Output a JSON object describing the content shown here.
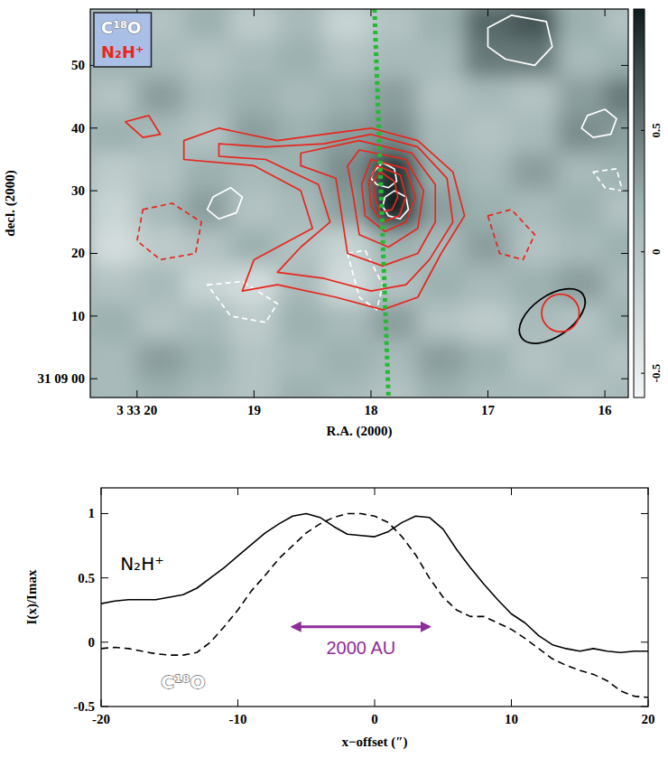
{
  "chart_data": [
    {
      "type": "contour",
      "x_label": "R.A. (2000)",
      "y_label": "decl. (2000)",
      "xlim": [
        20.4,
        15.8
      ],
      "ylim": [
        -3,
        59
      ],
      "xticks": [
        {
          "value": 20,
          "label": "3 33 20"
        },
        19,
        18,
        17,
        16
      ],
      "yticks": [
        {
          "value": 0,
          "label": "31 09 00"
        },
        10,
        20,
        30,
        40,
        50
      ],
      "legend": "top-left",
      "image": {
        "x": [
          20.2,
          19.8,
          19.4,
          19.0,
          18.6,
          18.2,
          17.8,
          17.4,
          17.0,
          16.6,
          16.2,
          15.8
        ],
        "y": [
          57,
          51,
          45,
          39,
          33,
          27,
          21,
          15,
          9,
          3,
          -3
        ],
        "z": [
          [
            0.1,
            0.0,
            0.2,
            -0.1,
            0.1,
            -0.2,
            0.0,
            0.2,
            0.6,
            0.7,
            0.2,
            0.0
          ],
          [
            0.2,
            0.1,
            0.0,
            0.1,
            0.2,
            0.0,
            0.1,
            0.1,
            0.5,
            0.5,
            0.1,
            0.2
          ],
          [
            0.0,
            0.3,
            0.1,
            0.2,
            0.1,
            0.2,
            0.3,
            0.0,
            0.1,
            0.0,
            0.3,
            0.5
          ],
          [
            0.2,
            0.1,
            0.0,
            0.3,
            0.2,
            0.3,
            0.4,
            0.1,
            0.0,
            0.1,
            0.4,
            0.3
          ],
          [
            -0.1,
            0.0,
            0.2,
            0.1,
            0.2,
            0.4,
            0.9,
            0.2,
            0.1,
            0.3,
            0.1,
            0.2
          ],
          [
            -0.2,
            0.1,
            0.3,
            0.0,
            0.1,
            0.3,
            1.0,
            0.3,
            0.2,
            0.1,
            0.2,
            0.0
          ],
          [
            -0.3,
            -0.1,
            0.0,
            0.2,
            0.0,
            -0.2,
            0.2,
            0.1,
            0.3,
            0.0,
            0.1,
            0.2
          ],
          [
            0.0,
            0.1,
            -0.2,
            -0.3,
            0.1,
            -0.3,
            0.0,
            0.2,
            0.1,
            0.2,
            0.3,
            0.1
          ],
          [
            0.2,
            0.0,
            0.1,
            -0.1,
            0.2,
            0.1,
            0.3,
            0.0,
            -0.1,
            0.1,
            0.0,
            0.2
          ],
          [
            0.1,
            0.3,
            0.2,
            0.0,
            0.1,
            0.2,
            0.1,
            0.3,
            0.2,
            0.0,
            0.1,
            0.0
          ],
          [
            0.1,
            0.2,
            0.1,
            0.0,
            0.2,
            0.1,
            0.0,
            0.2,
            0.1,
            0.1,
            0.0,
            0.1
          ]
        ],
        "zlim": [
          -0.6,
          1.0
        ],
        "zticks": [
          -0.5,
          0,
          0.5
        ]
      },
      "series": [
        {
          "name": "C¹⁸O",
          "color": "#ffffff",
          "contours": [
            {
              "line_style": "solid",
              "x": [
                17.98,
                17.9,
                17.8,
                17.78,
                17.85,
                17.95,
                18.0
              ],
              "y": [
                33,
                34.5,
                33.5,
                31.5,
                30.5,
                31,
                32
              ]
            },
            {
              "line_style": "solid",
              "x": [
                17.88,
                17.8,
                17.7,
                17.68,
                17.75,
                17.85,
                17.9
              ],
              "y": [
                29,
                30,
                29,
                27,
                25.5,
                26,
                27.5
              ]
            },
            {
              "line_style": "solid",
              "x": [
                17.0,
                16.8,
                16.5,
                16.45,
                16.6,
                16.85,
                17.0
              ],
              "y": [
                56,
                58,
                57,
                53,
                50,
                51,
                53
              ]
            },
            {
              "line_style": "solid",
              "x": [
                16.15,
                16.0,
                15.9,
                15.95,
                16.1,
                16.2
              ],
              "y": [
                42,
                43,
                41.5,
                39,
                38.5,
                40
              ]
            },
            {
              "line_style": "solid",
              "x": [
                19.35,
                19.2,
                19.1,
                19.15,
                19.3,
                19.4
              ],
              "y": [
                29,
                30.5,
                29,
                26.5,
                25.5,
                27
              ]
            },
            {
              "line_style": "dashed",
              "x": [
                18.2,
                18.05,
                17.9,
                17.95,
                18.1
              ],
              "y": [
                20,
                20.5,
                15,
                11,
                13
              ]
            },
            {
              "line_style": "dashed",
              "x": [
                19.4,
                19.1,
                18.8,
                18.9,
                19.2
              ],
              "y": [
                15,
                15.5,
                12,
                9,
                10
              ]
            },
            {
              "line_style": "dashed",
              "x": [
                16.1,
                15.9,
                15.85,
                16.0
              ],
              "y": [
                33,
                33.5,
                30,
                30.5
              ]
            }
          ]
        },
        {
          "name": "N₂H⁺",
          "color": "#e8261c",
          "contours": [
            {
              "line_style": "solid",
              "x": [
                19.6,
                19.3,
                18.8,
                18.4,
                18.0,
                17.6,
                17.3,
                17.2,
                17.4,
                17.6,
                17.9,
                18.3,
                18.8,
                19.1,
                19.0,
                18.5,
                18.6,
                19.0,
                19.6
              ],
              "y": [
                38,
                40,
                38,
                39,
                40,
                38,
                33,
                26,
                20,
                13,
                11,
                13,
                15,
                14,
                19,
                24,
                30,
                34,
                35
              ]
            },
            {
              "line_style": "solid",
              "x": [
                19.3,
                18.9,
                18.4,
                18.0,
                17.6,
                17.35,
                17.3,
                17.5,
                17.7,
                18.0,
                18.4,
                18.8,
                18.6,
                18.35,
                18.45,
                18.9,
                19.3
              ],
              "y": [
                37.5,
                37,
                37.5,
                39,
                37,
                32,
                25,
                19,
                15,
                14,
                16,
                17,
                21,
                25,
                31,
                35,
                35.5
              ]
            },
            {
              "line_style": "solid",
              "x": [
                18.6,
                18.1,
                17.65,
                17.45,
                17.45,
                17.6,
                17.9,
                18.2,
                18.25,
                18.3,
                18.6
              ],
              "y": [
                36,
                38,
                36,
                31,
                25,
                20,
                18,
                20,
                26,
                32,
                34
              ]
            },
            {
              "line_style": "solid",
              "x": [
                18.1,
                17.7,
                17.55,
                17.6,
                17.85,
                18.1,
                18.15,
                18.2
              ],
              "y": [
                36.5,
                35,
                30,
                24,
                21,
                23,
                29,
                34
              ]
            },
            {
              "line_style": "solid",
              "x": [
                18.0,
                17.7,
                17.62,
                17.7,
                17.88,
                18.05,
                18.08
              ],
              "y": [
                35,
                33.5,
                29,
                25,
                23.5,
                26,
                31
              ]
            },
            {
              "line_style": "solid",
              "x": [
                17.95,
                17.75,
                17.7,
                17.76,
                17.9,
                18.0,
                18.02
              ],
              "y": [
                34,
                32.5,
                29,
                26,
                25,
                27.5,
                31.5
              ]
            },
            {
              "line_style": "solid",
              "x": [
                17.92,
                17.8,
                17.77,
                17.82,
                17.92,
                17.97,
                17.98
              ],
              "y": [
                33,
                31.5,
                29,
                27,
                26.5,
                29,
                31.5
              ]
            },
            {
              "line_style": "solid",
              "x": [
                20.1,
                19.9,
                19.8,
                19.95
              ],
              "y": [
                41,
                42,
                39,
                38.5
              ]
            },
            {
              "line_style": "dashed",
              "x": [
                19.95,
                19.7,
                19.45,
                19.5,
                19.8,
                20.0
              ],
              "y": [
                27,
                28,
                25,
                20,
                19,
                22
              ]
            },
            {
              "line_style": "dashed",
              "x": [
                17.0,
                16.8,
                16.6,
                16.7,
                16.9
              ],
              "y": [
                26,
                27,
                23,
                19,
                20
              ]
            }
          ]
        }
      ],
      "beams": [
        {
          "x": 16.45,
          "y": 10,
          "major": 12,
          "minor": 6.5,
          "pa": -55,
          "color": "#000000"
        },
        {
          "x": 16.38,
          "y": 10.5,
          "major": 6,
          "minor": 6,
          "pa": 0,
          "color": "#e8261c"
        }
      ],
      "cut_line": {
        "x": [
          17.97,
          17.85
        ],
        "y": [
          59,
          -3
        ],
        "color": "#22bb33",
        "line_style": "dotted"
      }
    },
    {
      "type": "line",
      "x_label": "x−offset (″)",
      "y_label": "I(x)/Imax",
      "xlim": [
        -20,
        20
      ],
      "ylim": [
        -0.5,
        1.2
      ],
      "xticks": [
        -20,
        -10,
        0,
        10,
        20
      ],
      "yticks": [
        -0.5,
        0,
        0.5,
        1
      ],
      "x": [
        -20,
        -19,
        -18,
        -17,
        -16,
        -15,
        -14,
        -13,
        -12,
        -11,
        -10,
        -9,
        -8,
        -7,
        -6,
        -5,
        -4,
        -3,
        -2,
        -1,
        0,
        1,
        2,
        3,
        4,
        5,
        6,
        7,
        8,
        9,
        10,
        11,
        12,
        13,
        14,
        15,
        16,
        17,
        18,
        19,
        20
      ],
      "series": [
        {
          "name": "N₂H⁺",
          "color": "#000000",
          "line_style": "solid",
          "values": [
            0.3,
            0.32,
            0.33,
            0.33,
            0.33,
            0.35,
            0.37,
            0.42,
            0.5,
            0.58,
            0.67,
            0.76,
            0.85,
            0.92,
            0.98,
            1.0,
            0.97,
            0.9,
            0.84,
            0.83,
            0.82,
            0.86,
            0.93,
            0.98,
            0.97,
            0.88,
            0.72,
            0.58,
            0.45,
            0.33,
            0.22,
            0.15,
            0.05,
            -0.02,
            -0.05,
            -0.07,
            -0.05,
            -0.07,
            -0.08,
            -0.07,
            -0.07
          ]
        },
        {
          "name": "C¹⁸O",
          "color": "#000000",
          "line_style": "dashed",
          "values": [
            -0.05,
            -0.04,
            -0.05,
            -0.07,
            -0.09,
            -0.1,
            -0.1,
            -0.08,
            0.0,
            0.12,
            0.25,
            0.4,
            0.52,
            0.65,
            0.75,
            0.85,
            0.92,
            0.97,
            1.0,
            1.0,
            0.98,
            0.93,
            0.82,
            0.68,
            0.5,
            0.35,
            0.25,
            0.2,
            0.2,
            0.15,
            0.1,
            0.03,
            -0.05,
            -0.13,
            -0.18,
            -0.22,
            -0.25,
            -0.3,
            -0.38,
            -0.42,
            -0.43
          ]
        }
      ],
      "annotations": [
        {
          "text": "2000 AU",
          "x": [
            -6,
            4
          ],
          "y": 0.12,
          "color": "#8e2c98"
        }
      ]
    }
  ]
}
